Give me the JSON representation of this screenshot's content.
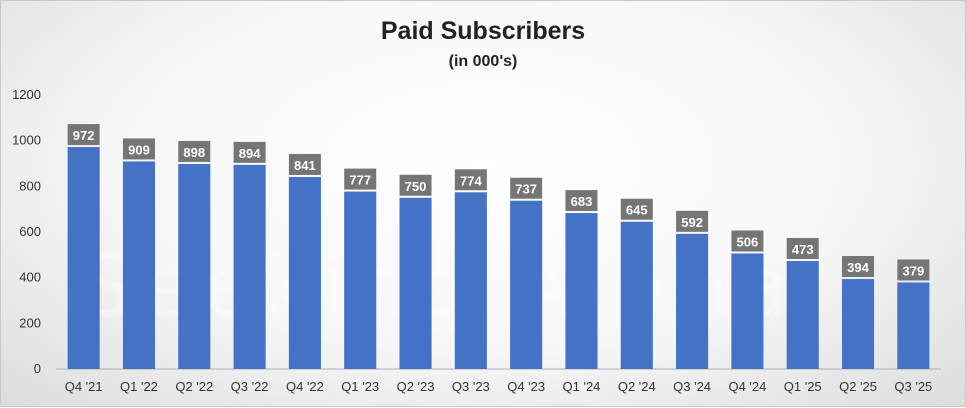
{
  "chart_data": {
    "type": "bar",
    "title": "Paid Subscribers",
    "subtitle": "(in 000's)",
    "categories": [
      "Q4 '21",
      "Q1 '22",
      "Q2 '22",
      "Q3 '22",
      "Q4 '22",
      "Q1 '23",
      "Q2 '23",
      "Q3 '23",
      "Q4 '23",
      "Q1 '24",
      "Q2 '24",
      "Q3 '24",
      "Q4 '24",
      "Q1 '25",
      "Q2 '25",
      "Q3 '25"
    ],
    "values": [
      972,
      909,
      898,
      894,
      841,
      777,
      750,
      774,
      737,
      683,
      645,
      592,
      506,
      473,
      394,
      379
    ],
    "ylim": [
      0,
      1200
    ],
    "yticks": [
      0,
      200,
      400,
      600,
      800,
      1000,
      1200
    ],
    "grid": false,
    "legend": "none",
    "bar_color": "#4472C4",
    "label_box_color": "#757575",
    "watermark": "Seeking Alpha"
  }
}
